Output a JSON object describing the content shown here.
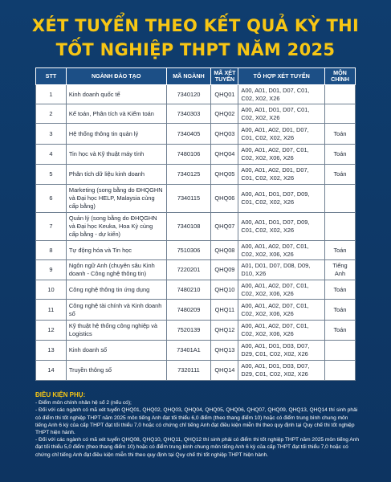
{
  "title": {
    "line1": "XÉT TUYỂN THEO KẾT QUẢ KỲ THI",
    "line2": "TỐT NGHIỆP THPT NĂM 2025"
  },
  "table": {
    "headers": [
      "STT",
      "NGÀNH ĐÀO TẠO",
      "MÃ NGÀNH",
      "MÃ XÉT TUYỂN",
      "TỔ HỢP XÉT TUYỂN",
      "MÔN CHÍNH"
    ],
    "rows": [
      {
        "stt": "1",
        "nganh": "Kinh doanh quốc tế",
        "ma_nganh": "7340120",
        "ma_xt": "QHQ01",
        "to_hop": "A00, A01, D01, D07, C01, C02, X02, X26",
        "mon_chinh": ""
      },
      {
        "stt": "2",
        "nganh": "Kế toán, Phân tích và Kiểm toán",
        "ma_nganh": "7340303",
        "ma_xt": "QHQ02",
        "to_hop": "A00, A01, D01, D07, C01, C02, X02, X26",
        "mon_chinh": ""
      },
      {
        "stt": "3",
        "nganh": "Hệ thống thông tin quản lý",
        "ma_nganh": "7340405",
        "ma_xt": "QHQ03",
        "to_hop": "A00, A01, A02, D01, D07, C01, C02, X02, X26",
        "mon_chinh": "Toán"
      },
      {
        "stt": "4",
        "nganh": "Tin học và Kỹ thuật máy tính",
        "ma_nganh": "7480106",
        "ma_xt": "QHQ04",
        "to_hop": "A00, A01, A02, D07, C01, C02, X02, X06, X26",
        "mon_chinh": "Toán"
      },
      {
        "stt": "5",
        "nganh": "Phân tích dữ liệu kinh doanh",
        "ma_nganh": "7340125",
        "ma_xt": "QHQ05",
        "to_hop": "A00, A01, A02, D01, D07, C01, C02, X02, X26",
        "mon_chinh": "Toán"
      },
      {
        "stt": "6",
        "nganh": "Marketing (song bằng do ĐHQGHN và Đại học HELP, Malaysia cùng cấp bằng)",
        "ma_nganh": "7340115",
        "ma_xt": "QHQ06",
        "to_hop": "A00, A01, D01, D07, D09, C01, C02, X02, X26",
        "mon_chinh": ""
      },
      {
        "stt": "7",
        "nganh": "Quản lý (song bằng do ĐHQGHN và Đại học Keuka, Hoa Kỳ cùng cấp bằng - dự kiến)",
        "ma_nganh": "7340108",
        "ma_xt": "QHQ07",
        "to_hop": "A00, A01, D01, D07, D09, C01, C02, X02, X26",
        "mon_chinh": ""
      },
      {
        "stt": "8",
        "nganh": "Tự động hóa và Tin học",
        "ma_nganh": "7510306",
        "ma_xt": "QHQ08",
        "to_hop": "A00, A01, A02, D07, C01, C02, X02, X06, X26",
        "mon_chinh": "Toán"
      },
      {
        "stt": "9",
        "nganh": "Ngôn ngữ Anh (chuyên sâu Kinh doanh - Công nghệ thông tin)",
        "ma_nganh": "7220201",
        "ma_xt": "QHQ09",
        "to_hop": "A01, D01, D07, D08, D09, D10, X26",
        "mon_chinh": "Tiếng Anh"
      },
      {
        "stt": "10",
        "nganh": "Công nghệ thông tin ứng dụng",
        "ma_nganh": "7480210",
        "ma_xt": "QHQ10",
        "to_hop": "A00, A01, A02, D07, C01, C02, X02, X06, X26",
        "mon_chinh": "Toán"
      },
      {
        "stt": "11",
        "nganh": "Công nghệ tài chính và Kinh doanh số",
        "ma_nganh": "7480209",
        "ma_xt": "QHQ11",
        "to_hop": "A00, A01, A02, D07, C01, C02, X02, X06, X26",
        "mon_chinh": "Toán"
      },
      {
        "stt": "12",
        "nganh": "Kỹ thuật hệ thống công nghiệp và Logistics",
        "ma_nganh": "7520139",
        "ma_xt": "QHQ12",
        "to_hop": "A00, A01, A02, D07, C01, C02, X02, X06, X26",
        "mon_chinh": "Toán"
      },
      {
        "stt": "13",
        "nganh": "Kinh doanh số",
        "ma_nganh": "73401A1",
        "ma_xt": "QHQ13",
        "to_hop": "A00, A01, D01, D03, D07, D29, C01, C02, X02, X26",
        "mon_chinh": ""
      },
      {
        "stt": "14",
        "nganh": "Truyền thông số",
        "ma_nganh": "7320111",
        "ma_xt": "QHQ14",
        "to_hop": "A00, A01, D01, D03, D07, D29, C01, C02, X02, X26",
        "mon_chinh": ""
      }
    ]
  },
  "notes": {
    "title": "ĐIỀU KIỆN PHỤ:",
    "items": [
      "- Điểm môn chính nhân hệ số 2 (nếu có);",
      "- Đối với các ngành có mã xét tuyển QHQ01, QHQ02, QHQ03, QHQ04, QHQ05, QHQ06, QHQ07, QHQ09, QHQ13, QHQ14 thí sinh phải có điểm thi tốt nghiệp THPT năm 2025 môn tiếng Anh đạt tối thiểu 6,0 điểm (theo thang điểm 10) hoặc có điểm trung bình chung môn tiếng Anh 6 kỳ của cấp THPT đạt tối thiểu 7,0 hoặc có chứng chỉ tiếng Anh đạt điều kiện miễn thi theo quy định tại Quy chế thi tốt nghiệp THPT hiện hành.",
      "- Đối với các ngành có mã xét tuyển QHQ08, QHQ10, QHQ11, QHQ12 thí sinh phải có điểm thi tốt nghiệp THPT năm 2025 môn tiếng Anh đạt tối thiểu 5,0 điểm (theo thang điểm 10) hoặc có điểm trung bình chung môn tiếng Anh 6 kỳ của cấp THPT đạt tối thiểu 7,0 hoặc có chứng chỉ tiếng Anh đạt điều kiện miễn thi theo quy định tại Quy chế thi tốt nghiệp THPT hiện hành."
    ]
  }
}
